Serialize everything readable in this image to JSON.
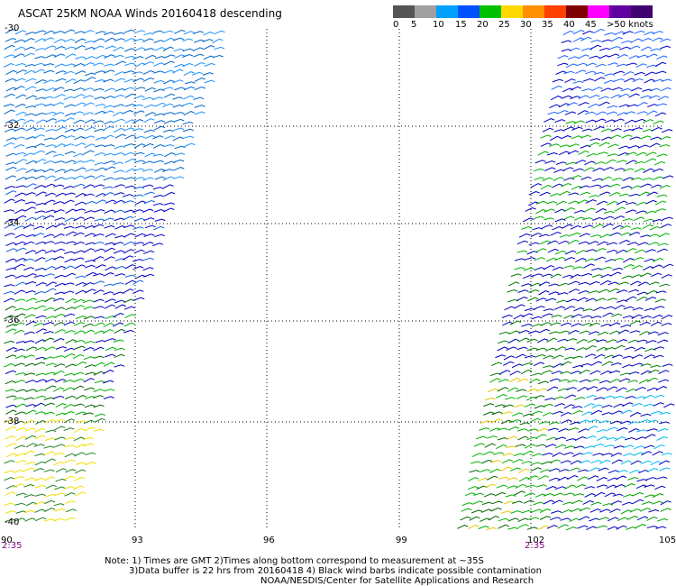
{
  "title": "ASCAT 25KM NOAA Winds 20160418 descending",
  "colorbar": {
    "labels": [
      "0",
      "5",
      "10",
      "15",
      "20",
      "25",
      "30",
      "35",
      "40",
      "45",
      ">50 knots"
    ],
    "colors": [
      "#555555",
      "#a0a0a0",
      "#00a0ff",
      "#0050ff",
      "#00c000",
      "#ffd800",
      "#ff9000",
      "#ff4000",
      "#800000",
      "#ff00ff",
      "#6000a0",
      "#400070"
    ]
  },
  "map": {
    "lat_labels": [
      "-30",
      "-32",
      "-34",
      "-36",
      "-38",
      "-40"
    ],
    "lon_labels": [
      "90",
      "93",
      "96",
      "99",
      "102",
      "105"
    ],
    "time_labels": [
      "2:35",
      "2:35"
    ]
  },
  "notes": {
    "line1": "Note: 1) Times are GMT 2)Times along bottom correspond to measurement at ~35S",
    "line2": "3)Data buffer is 22 hrs from 20160418 4) Black wind barbs indicate possible contamination",
    "line3": "NOAA/NESDIS/Center for Satellite Applications and Research"
  }
}
